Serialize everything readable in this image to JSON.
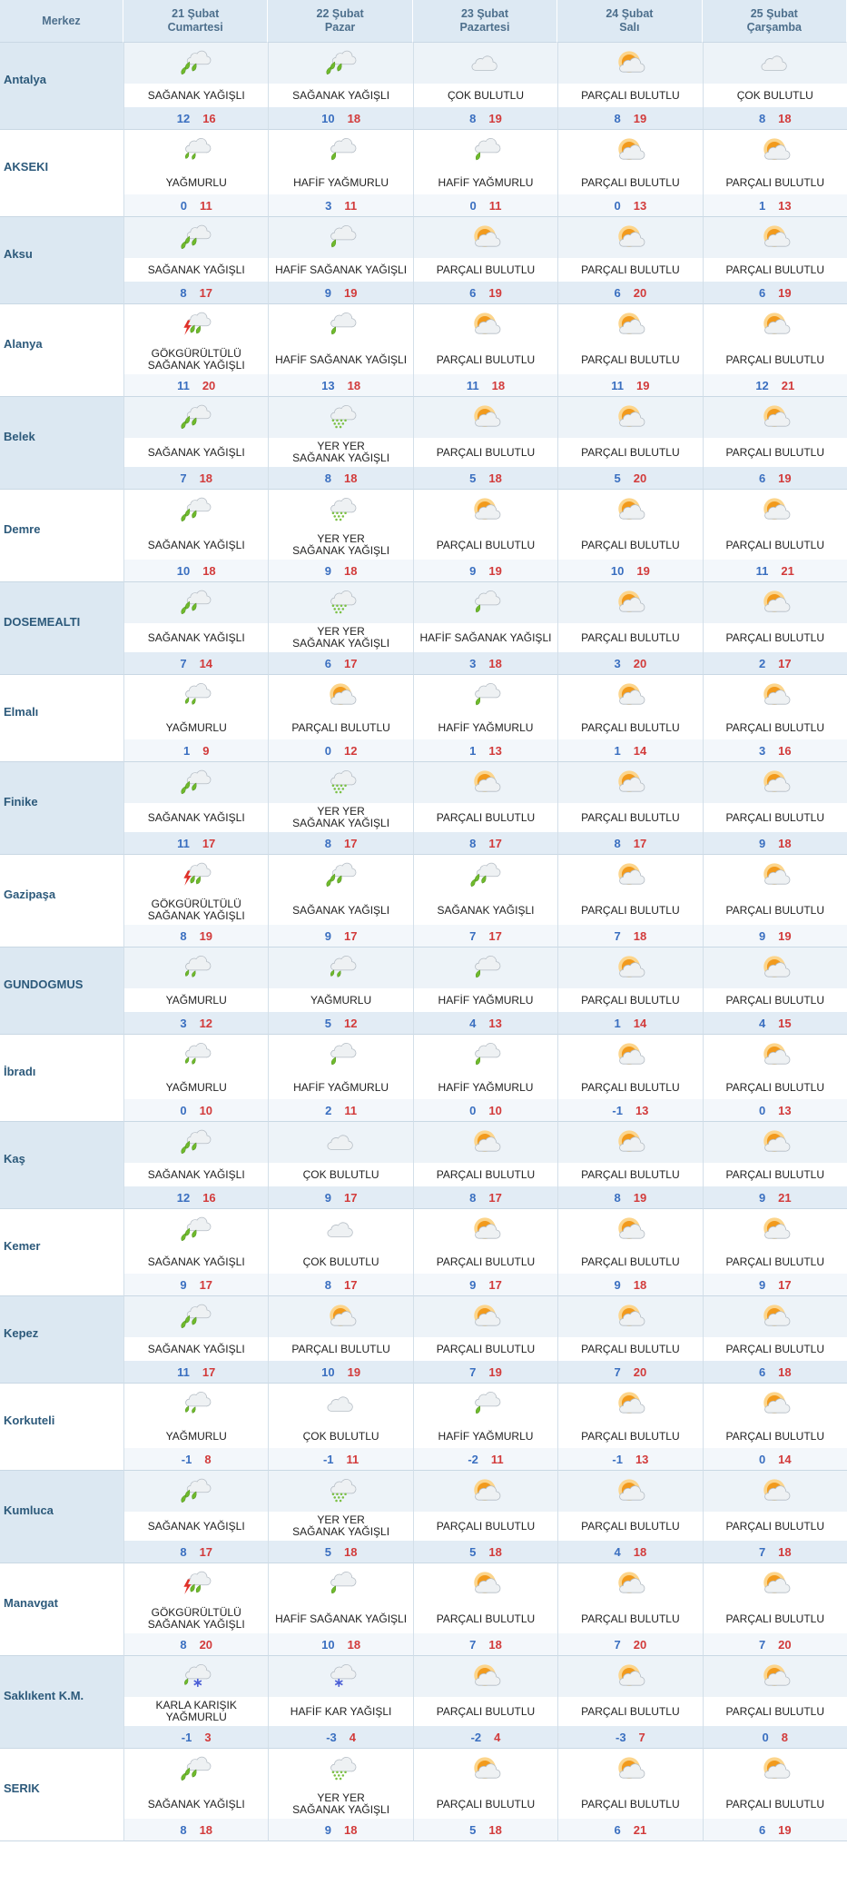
{
  "header": {
    "corner": "Merkez",
    "days": [
      {
        "date": "21 Şubat",
        "weekday": "Cumartesi"
      },
      {
        "date": "22 Şubat",
        "weekday": "Pazar"
      },
      {
        "date": "23 Şubat",
        "weekday": "Pazartesi"
      },
      {
        "date": "24 Şubat",
        "weekday": "Salı"
      },
      {
        "date": "25 Şubat",
        "weekday": "Çarşamba"
      }
    ]
  },
  "rows": [
    {
      "city": "Antalya",
      "cells": [
        {
          "condition": "SAĞANAK YAĞIŞLI",
          "low": 12,
          "high": 16
        },
        {
          "condition": "SAĞANAK YAĞIŞLI",
          "low": 10,
          "high": 18
        },
        {
          "condition": "ÇOK BULUTLU",
          "low": 8,
          "high": 19
        },
        {
          "condition": "PARÇALI BULUTLU",
          "low": 8,
          "high": 19
        },
        {
          "condition": "ÇOK BULUTLU",
          "low": 8,
          "high": 18
        }
      ]
    },
    {
      "city": "AKSEKI",
      "cells": [
        {
          "condition": "YAĞMURLU",
          "low": 0,
          "high": 11
        },
        {
          "condition": "HAFİF YAĞMURLU",
          "low": 3,
          "high": 11
        },
        {
          "condition": "HAFİF YAĞMURLU",
          "low": 0,
          "high": 11
        },
        {
          "condition": "PARÇALI BULUTLU",
          "low": 0,
          "high": 13
        },
        {
          "condition": "PARÇALI BULUTLU",
          "low": 1,
          "high": 13
        }
      ]
    },
    {
      "city": "Aksu",
      "cells": [
        {
          "condition": "SAĞANAK YAĞIŞLI",
          "low": 8,
          "high": 17
        },
        {
          "condition": "HAFİF SAĞANAK YAĞIŞLI",
          "low": 9,
          "high": 19
        },
        {
          "condition": "PARÇALI BULUTLU",
          "low": 6,
          "high": 19
        },
        {
          "condition": "PARÇALI BULUTLU",
          "low": 6,
          "high": 20
        },
        {
          "condition": "PARÇALI BULUTLU",
          "low": 6,
          "high": 19
        }
      ]
    },
    {
      "city": "Alanya",
      "cells": [
        {
          "condition": "GÖKGÜRÜLTÜLÜ SAĞANAK YAĞIŞLI",
          "low": 11,
          "high": 20
        },
        {
          "condition": "HAFİF SAĞANAK YAĞIŞLI",
          "low": 13,
          "high": 18
        },
        {
          "condition": "PARÇALI BULUTLU",
          "low": 11,
          "high": 18
        },
        {
          "condition": "PARÇALI BULUTLU",
          "low": 11,
          "high": 19
        },
        {
          "condition": "PARÇALI BULUTLU",
          "low": 12,
          "high": 21
        }
      ]
    },
    {
      "city": "Belek",
      "cells": [
        {
          "condition": "SAĞANAK YAĞIŞLI",
          "low": 7,
          "high": 18
        },
        {
          "condition": "YER YER SAĞANAK YAĞIŞLI",
          "low": 8,
          "high": 18
        },
        {
          "condition": "PARÇALI BULUTLU",
          "low": 5,
          "high": 18
        },
        {
          "condition": "PARÇALI BULUTLU",
          "low": 5,
          "high": 20
        },
        {
          "condition": "PARÇALI BULUTLU",
          "low": 6,
          "high": 19
        }
      ]
    },
    {
      "city": "Demre",
      "cells": [
        {
          "condition": "SAĞANAK YAĞIŞLI",
          "low": 10,
          "high": 18
        },
        {
          "condition": "YER YER SAĞANAK YAĞIŞLI",
          "low": 9,
          "high": 18
        },
        {
          "condition": "PARÇALI BULUTLU",
          "low": 9,
          "high": 19
        },
        {
          "condition": "PARÇALI BULUTLU",
          "low": 10,
          "high": 19
        },
        {
          "condition": "PARÇALI BULUTLU",
          "low": 11,
          "high": 21
        }
      ]
    },
    {
      "city": "DOSEMEALTI",
      "cells": [
        {
          "condition": "SAĞANAK YAĞIŞLI",
          "low": 7,
          "high": 14
        },
        {
          "condition": "YER YER SAĞANAK YAĞIŞLI",
          "low": 6,
          "high": 17
        },
        {
          "condition": "HAFİF SAĞANAK YAĞIŞLI",
          "low": 3,
          "high": 18
        },
        {
          "condition": "PARÇALI BULUTLU",
          "low": 3,
          "high": 20
        },
        {
          "condition": "PARÇALI BULUTLU",
          "low": 2,
          "high": 17
        }
      ]
    },
    {
      "city": "Elmalı",
      "cells": [
        {
          "condition": "YAĞMURLU",
          "low": 1,
          "high": 9
        },
        {
          "condition": "PARÇALI BULUTLU",
          "low": 0,
          "high": 12
        },
        {
          "condition": "HAFİF YAĞMURLU",
          "low": 1,
          "high": 13
        },
        {
          "condition": "PARÇALI BULUTLU",
          "low": 1,
          "high": 14
        },
        {
          "condition": "PARÇALI BULUTLU",
          "low": 3,
          "high": 16
        }
      ]
    },
    {
      "city": "Finike",
      "cells": [
        {
          "condition": "SAĞANAK YAĞIŞLI",
          "low": 11,
          "high": 17
        },
        {
          "condition": "YER YER SAĞANAK YAĞIŞLI",
          "low": 8,
          "high": 17
        },
        {
          "condition": "PARÇALI BULUTLU",
          "low": 8,
          "high": 17
        },
        {
          "condition": "PARÇALI BULUTLU",
          "low": 8,
          "high": 17
        },
        {
          "condition": "PARÇALI BULUTLU",
          "low": 9,
          "high": 18
        }
      ]
    },
    {
      "city": "Gazipaşa",
      "cells": [
        {
          "condition": "GÖKGÜRÜLTÜLÜ SAĞANAK YAĞIŞLI",
          "low": 8,
          "high": 19
        },
        {
          "condition": "SAĞANAK YAĞIŞLI",
          "low": 9,
          "high": 17
        },
        {
          "condition": "SAĞANAK YAĞIŞLI",
          "low": 7,
          "high": 17
        },
        {
          "condition": "PARÇALI BULUTLU",
          "low": 7,
          "high": 18
        },
        {
          "condition": "PARÇALI BULUTLU",
          "low": 9,
          "high": 19
        }
      ]
    },
    {
      "city": "GUNDOGMUS",
      "cells": [
        {
          "condition": "YAĞMURLU",
          "low": 3,
          "high": 12
        },
        {
          "condition": "YAĞMURLU",
          "low": 5,
          "high": 12
        },
        {
          "condition": "HAFİF YAĞMURLU",
          "low": 4,
          "high": 13
        },
        {
          "condition": "PARÇALI BULUTLU",
          "low": 1,
          "high": 14
        },
        {
          "condition": "PARÇALI BULUTLU",
          "low": 4,
          "high": 15
        }
      ]
    },
    {
      "city": "İbradı",
      "cells": [
        {
          "condition": "YAĞMURLU",
          "low": 0,
          "high": 10
        },
        {
          "condition": "HAFİF YAĞMURLU",
          "low": 2,
          "high": 11
        },
        {
          "condition": "HAFİF YAĞMURLU",
          "low": 0,
          "high": 10
        },
        {
          "condition": "PARÇALI BULUTLU",
          "low": -1,
          "high": 13
        },
        {
          "condition": "PARÇALI BULUTLU",
          "low": 0,
          "high": 13
        }
      ]
    },
    {
      "city": "Kaş",
      "cells": [
        {
          "condition": "SAĞANAK YAĞIŞLI",
          "low": 12,
          "high": 16
        },
        {
          "condition": "ÇOK BULUTLU",
          "low": 9,
          "high": 17
        },
        {
          "condition": "PARÇALI BULUTLU",
          "low": 8,
          "high": 17
        },
        {
          "condition": "PARÇALI BULUTLU",
          "low": 8,
          "high": 19
        },
        {
          "condition": "PARÇALI BULUTLU",
          "low": 9,
          "high": 21
        }
      ]
    },
    {
      "city": "Kemer",
      "cells": [
        {
          "condition": "SAĞANAK YAĞIŞLI",
          "low": 9,
          "high": 17
        },
        {
          "condition": "ÇOK BULUTLU",
          "low": 8,
          "high": 17
        },
        {
          "condition": "PARÇALI BULUTLU",
          "low": 9,
          "high": 17
        },
        {
          "condition": "PARÇALI BULUTLU",
          "low": 9,
          "high": 18
        },
        {
          "condition": "PARÇALI BULUTLU",
          "low": 9,
          "high": 17
        }
      ]
    },
    {
      "city": "Kepez",
      "cells": [
        {
          "condition": "SAĞANAK YAĞIŞLI",
          "low": 11,
          "high": 17
        },
        {
          "condition": "PARÇALI BULUTLU",
          "low": 10,
          "high": 19
        },
        {
          "condition": "PARÇALI BULUTLU",
          "low": 7,
          "high": 19
        },
        {
          "condition": "PARÇALI BULUTLU",
          "low": 7,
          "high": 20
        },
        {
          "condition": "PARÇALI BULUTLU",
          "low": 6,
          "high": 18
        }
      ]
    },
    {
      "city": "Korkuteli",
      "cells": [
        {
          "condition": "YAĞMURLU",
          "low": -1,
          "high": 8
        },
        {
          "condition": "ÇOK BULUTLU",
          "low": -1,
          "high": 11
        },
        {
          "condition": "HAFİF YAĞMURLU",
          "low": -2,
          "high": 11
        },
        {
          "condition": "PARÇALI BULUTLU",
          "low": -1,
          "high": 13
        },
        {
          "condition": "PARÇALI BULUTLU",
          "low": 0,
          "high": 14
        }
      ]
    },
    {
      "city": "Kumluca",
      "cells": [
        {
          "condition": "SAĞANAK YAĞIŞLI",
          "low": 8,
          "high": 17
        },
        {
          "condition": "YER YER SAĞANAK YAĞIŞLI",
          "low": 5,
          "high": 18
        },
        {
          "condition": "PARÇALI BULUTLU",
          "low": 5,
          "high": 18
        },
        {
          "condition": "PARÇALI BULUTLU",
          "low": 4,
          "high": 18
        },
        {
          "condition": "PARÇALI BULUTLU",
          "low": 7,
          "high": 18
        }
      ]
    },
    {
      "city": "Manavgat",
      "cells": [
        {
          "condition": "GÖKGÜRÜLTÜLÜ SAĞANAK YAĞIŞLI",
          "low": 8,
          "high": 20
        },
        {
          "condition": "HAFİF SAĞANAK YAĞIŞLI",
          "low": 10,
          "high": 18
        },
        {
          "condition": "PARÇALI BULUTLU",
          "low": 7,
          "high": 18
        },
        {
          "condition": "PARÇALI BULUTLU",
          "low": 7,
          "high": 20
        },
        {
          "condition": "PARÇALI BULUTLU",
          "low": 7,
          "high": 20
        }
      ]
    },
    {
      "city": "Saklıkent K.M.",
      "cells": [
        {
          "condition": "KARLA KARIŞIK YAĞMURLU",
          "low": -1,
          "high": 3
        },
        {
          "condition": "HAFİF KAR YAĞIŞLI",
          "low": -3,
          "high": 4
        },
        {
          "condition": "PARÇALI BULUTLU",
          "low": -2,
          "high": 4
        },
        {
          "condition": "PARÇALI BULUTLU",
          "low": -3,
          "high": 7
        },
        {
          "condition": "PARÇALI BULUTLU",
          "low": 0,
          "high": 8
        }
      ]
    },
    {
      "city": "SERIK",
      "cells": [
        {
          "condition": "SAĞANAK YAĞIŞLI",
          "low": 8,
          "high": 18
        },
        {
          "condition": "YER YER SAĞANAK YAĞIŞLI",
          "low": 9,
          "high": 18
        },
        {
          "condition": "PARÇALI BULUTLU",
          "low": 5,
          "high": 18
        },
        {
          "condition": "PARÇALI BULUTLU",
          "low": 6,
          "high": 21
        },
        {
          "condition": "PARÇALI BULUTLU",
          "low": 6,
          "high": 19
        }
      ]
    }
  ]
}
